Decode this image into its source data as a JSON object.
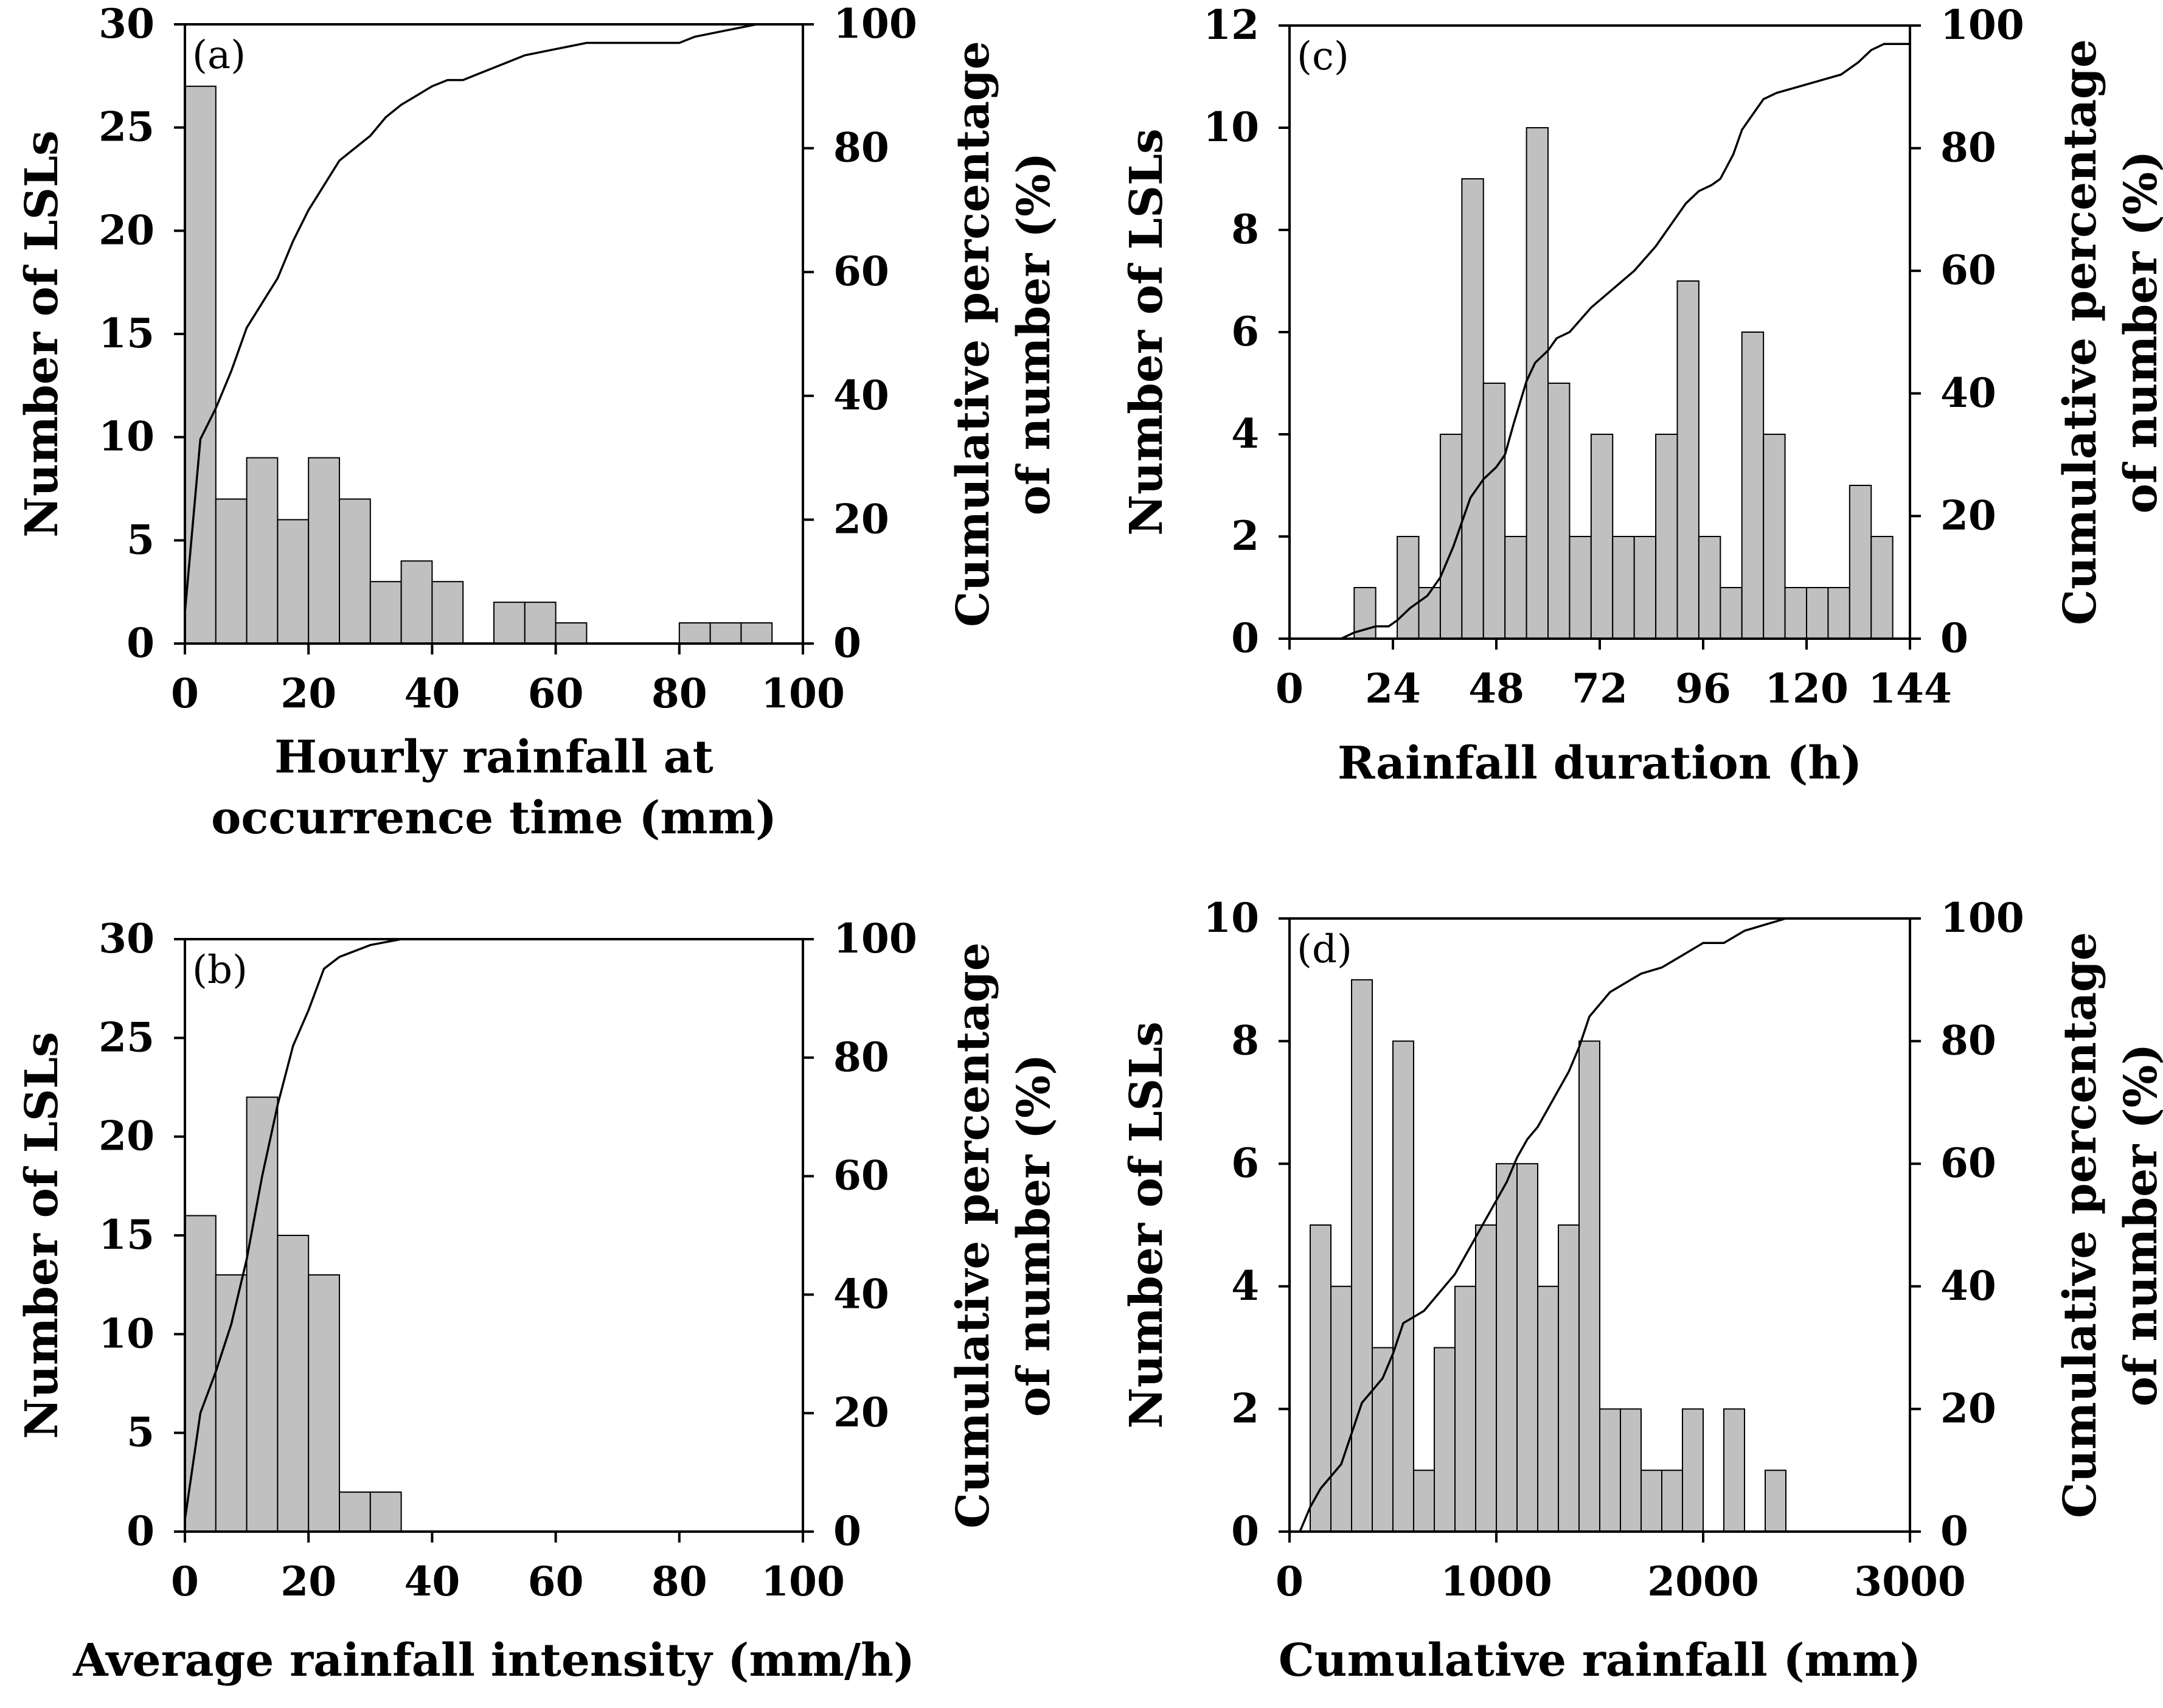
{
  "chart_data": [
    {
      "id": "a",
      "type": "bar",
      "panel_label": "(a)",
      "xlabel_lines": [
        "Hourly rainfall at",
        "occurrence time (mm)"
      ],
      "ylabel": "Number of LSLs",
      "y2label_lines": [
        "Cumulative percentage",
        "of number (%)"
      ],
      "xlim": [
        0,
        100
      ],
      "ylim": [
        0,
        30
      ],
      "y2lim": [
        0,
        100
      ],
      "xticks": [
        0,
        20,
        40,
        60,
        80,
        100
      ],
      "xtick_labels": [
        "0",
        "20",
        "40",
        "60",
        "80",
        "100"
      ],
      "yticks": [
        0,
        5,
        10,
        15,
        20,
        25,
        30
      ],
      "ytick_labels": [
        "0",
        "5",
        "10",
        "15",
        "20",
        "25",
        "30"
      ],
      "y2ticks": [
        0,
        20,
        40,
        60,
        80,
        100
      ],
      "y2tick_labels": [
        "0",
        "20",
        "40",
        "60",
        "80",
        "100"
      ],
      "bin_width": 5,
      "bin_starts": [
        0,
        5,
        10,
        15,
        20,
        25,
        30,
        35,
        40,
        45,
        50,
        55,
        60,
        65,
        70,
        75,
        80,
        85,
        90,
        95
      ],
      "values": [
        27,
        7,
        9,
        6,
        9,
        7,
        3,
        4,
        3,
        0,
        2,
        2,
        1,
        0,
        0,
        0,
        1,
        1,
        1,
        0
      ],
      "cumulative": {
        "x": [
          0,
          2.5,
          5,
          7.5,
          10,
          12.5,
          15,
          17.5,
          20,
          22.5,
          25,
          27.5,
          30,
          32.5,
          35,
          37.5,
          40,
          42.5,
          45,
          47.5,
          50,
          52.5,
          55,
          57.5,
          60,
          62.5,
          65,
          70,
          75,
          80,
          82.5,
          85,
          87.5,
          90,
          92.5,
          95,
          100
        ],
        "y": [
          5,
          33,
          38,
          44,
          51,
          55,
          59,
          65,
          70,
          74,
          78,
          80,
          82,
          85,
          87,
          88.5,
          90,
          91,
          91,
          92,
          93,
          94,
          95,
          95.5,
          96,
          96.5,
          97,
          97,
          97,
          97,
          98,
          98.5,
          99,
          99.5,
          100,
          100,
          100
        ]
      }
    },
    {
      "id": "b",
      "type": "bar",
      "panel_label": "(b)",
      "xlabel_lines": [
        "Average rainfall intensity (mm/h)"
      ],
      "ylabel": "Number of LSLs",
      "y2label_lines": [
        "Cumulative percentage",
        "of number (%)"
      ],
      "xlim": [
        0,
        100
      ],
      "ylim": [
        0,
        30
      ],
      "y2lim": [
        0,
        100
      ],
      "xticks": [
        0,
        20,
        40,
        60,
        80,
        100
      ],
      "xtick_labels": [
        "0",
        "20",
        "40",
        "60",
        "80",
        "100"
      ],
      "yticks": [
        0,
        5,
        10,
        15,
        20,
        25,
        30
      ],
      "ytick_labels": [
        "0",
        "5",
        "10",
        "15",
        "20",
        "25",
        "30"
      ],
      "y2ticks": [
        0,
        20,
        40,
        60,
        80,
        100
      ],
      "y2tick_labels": [
        "0",
        "20",
        "40",
        "60",
        "80",
        "100"
      ],
      "bin_width": 5,
      "bin_starts": [
        0,
        5,
        10,
        15,
        20,
        25,
        30
      ],
      "values": [
        16,
        13,
        22,
        15,
        13,
        2,
        2
      ],
      "cumulative": {
        "x": [
          0,
          2.5,
          5,
          7.5,
          10,
          12.5,
          15,
          17.5,
          20,
          22.5,
          25,
          30,
          35,
          40,
          100
        ],
        "y": [
          2,
          20,
          27,
          35,
          46,
          60,
          72,
          82,
          88,
          95,
          97,
          99,
          100,
          100,
          100
        ]
      }
    },
    {
      "id": "c",
      "type": "bar",
      "panel_label": "(c)",
      "xlabel_lines": [
        "Rainfall duration (h)"
      ],
      "ylabel": "Number of LSLs",
      "y2label_lines": [
        "Cumulative percentage",
        "of number (%)"
      ],
      "xlim": [
        0,
        144
      ],
      "ylim": [
        0,
        12
      ],
      "y2lim": [
        0,
        100
      ],
      "xticks": [
        0,
        24,
        48,
        72,
        96,
        120,
        144
      ],
      "xtick_labels": [
        "0",
        "24",
        "48",
        "72",
        "96",
        "120",
        "144"
      ],
      "yticks": [
        0,
        2,
        4,
        6,
        8,
        10,
        12
      ],
      "ytick_labels": [
        "0",
        "2",
        "4",
        "6",
        "8",
        "10",
        "12"
      ],
      "y2ticks": [
        0,
        20,
        40,
        60,
        80,
        100
      ],
      "y2tick_labels": [
        "0",
        "20",
        "40",
        "60",
        "80",
        "100"
      ],
      "bin_width": 5,
      "bin_starts": [
        15,
        20,
        25,
        30,
        35,
        40,
        45,
        50,
        55,
        60,
        65,
        70,
        75,
        80,
        85,
        90,
        95,
        100,
        105,
        110,
        115,
        120,
        125,
        130,
        135
      ],
      "values": [
        1,
        0,
        2,
        1,
        4,
        9,
        5,
        2,
        10,
        5,
        2,
        4,
        2,
        2,
        4,
        7,
        2,
        1,
        6,
        4,
        1,
        1,
        1,
        3,
        2
      ],
      "cumulative": {
        "x": [
          0,
          12,
          15,
          20,
          23,
          25,
          28,
          32,
          35,
          38,
          40,
          42,
          45,
          48,
          50,
          52,
          55,
          57,
          60,
          62,
          65,
          70,
          75,
          80,
          85,
          88,
          92,
          95,
          98,
          100,
          103,
          105,
          108,
          110,
          113,
          118,
          123,
          128,
          132,
          135,
          138,
          144
        ],
        "y": [
          0,
          0,
          1,
          2,
          2,
          3,
          5,
          7,
          10,
          15,
          19,
          23,
          26,
          28,
          30,
          35,
          42,
          45,
          47,
          49,
          50,
          54,
          57,
          60,
          64,
          67,
          71,
          73,
          74,
          75,
          79,
          83,
          86,
          88,
          89,
          90,
          91,
          92,
          94,
          96,
          97,
          97
        ]
      }
    },
    {
      "id": "d",
      "type": "bar",
      "panel_label": "(d)",
      "xlabel_lines": [
        "Cumulative rainfall (mm)"
      ],
      "ylabel": "Number of LSLs",
      "y2label_lines": [
        "Cumulative percentage",
        "of number (%)"
      ],
      "xlim": [
        0,
        3000
      ],
      "ylim": [
        0,
        10
      ],
      "y2lim": [
        0,
        100
      ],
      "xticks": [
        0,
        1000,
        2000,
        3000
      ],
      "xtick_labels": [
        "0",
        "1000",
        "2000",
        "3000"
      ],
      "yticks": [
        0,
        2,
        4,
        6,
        8,
        10
      ],
      "ytick_labels": [
        "0",
        "2",
        "4",
        "6",
        "8",
        "10"
      ],
      "y2ticks": [
        0,
        20,
        40,
        60,
        80,
        100
      ],
      "y2tick_labels": [
        "0",
        "20",
        "40",
        "60",
        "80",
        "100"
      ],
      "bin_width": 100,
      "bin_starts": [
        100,
        200,
        300,
        400,
        500,
        600,
        700,
        800,
        900,
        1000,
        1100,
        1200,
        1300,
        1400,
        1500,
        1600,
        1700,
        1800,
        1900,
        2000,
        2100,
        2200,
        2300
      ],
      "values": [
        5,
        4,
        9,
        3,
        8,
        1,
        3,
        4,
        5,
        6,
        6,
        4,
        5,
        8,
        2,
        2,
        1,
        1,
        2,
        0,
        2,
        0,
        1
      ],
      "cumulative": {
        "x": [
          50,
          100,
          150,
          200,
          250,
          300,
          350,
          400,
          450,
          500,
          550,
          600,
          650,
          700,
          750,
          800,
          850,
          900,
          950,
          1000,
          1050,
          1100,
          1150,
          1200,
          1250,
          1300,
          1350,
          1400,
          1450,
          1500,
          1550,
          1600,
          1650,
          1700,
          1800,
          1900,
          2000,
          2100,
          2200,
          2300,
          2400,
          2500,
          3000
        ],
        "y": [
          0,
          4,
          7,
          9,
          11,
          16,
          21,
          23,
          25,
          29,
          34,
          35,
          36,
          38,
          40,
          42,
          45,
          48,
          51,
          54,
          57,
          61,
          64,
          66,
          69,
          72,
          75,
          79,
          84,
          86,
          88,
          89,
          90,
          91,
          92,
          94,
          96,
          96,
          98,
          99,
          100,
          100,
          100
        ]
      }
    }
  ]
}
